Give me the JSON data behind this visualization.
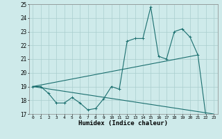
{
  "xlabel": "Humidex (Indice chaleur)",
  "background_color": "#ceeaea",
  "grid_color": "#aacece",
  "line_color": "#1a6e6e",
  "xlim": [
    -0.5,
    23.5
  ],
  "ylim": [
    17,
    25
  ],
  "xticks": [
    0,
    1,
    2,
    3,
    4,
    5,
    6,
    7,
    8,
    9,
    10,
    11,
    12,
    13,
    14,
    15,
    16,
    17,
    18,
    19,
    20,
    21,
    22,
    23
  ],
  "yticks": [
    17,
    18,
    19,
    20,
    21,
    22,
    23,
    24,
    25
  ],
  "series1_x": [
    0,
    1,
    2,
    3,
    4,
    5,
    6,
    7,
    8,
    9,
    10,
    11,
    12,
    13,
    14,
    15,
    16,
    17,
    18,
    19,
    20,
    21,
    22,
    23
  ],
  "series1_y": [
    19.0,
    19.0,
    18.5,
    17.8,
    17.8,
    18.2,
    17.8,
    17.3,
    17.4,
    18.1,
    19.0,
    18.8,
    22.3,
    22.5,
    22.5,
    24.8,
    21.2,
    21.0,
    23.0,
    23.2,
    22.6,
    21.3,
    16.9,
    16.8
  ],
  "series2_x": [
    0,
    23
  ],
  "series2_y": [
    19.0,
    17.0
  ],
  "series3_x": [
    0,
    21
  ],
  "series3_y": [
    19.0,
    21.3
  ],
  "marker": "+",
  "lw": 0.8,
  "ms": 3.5
}
